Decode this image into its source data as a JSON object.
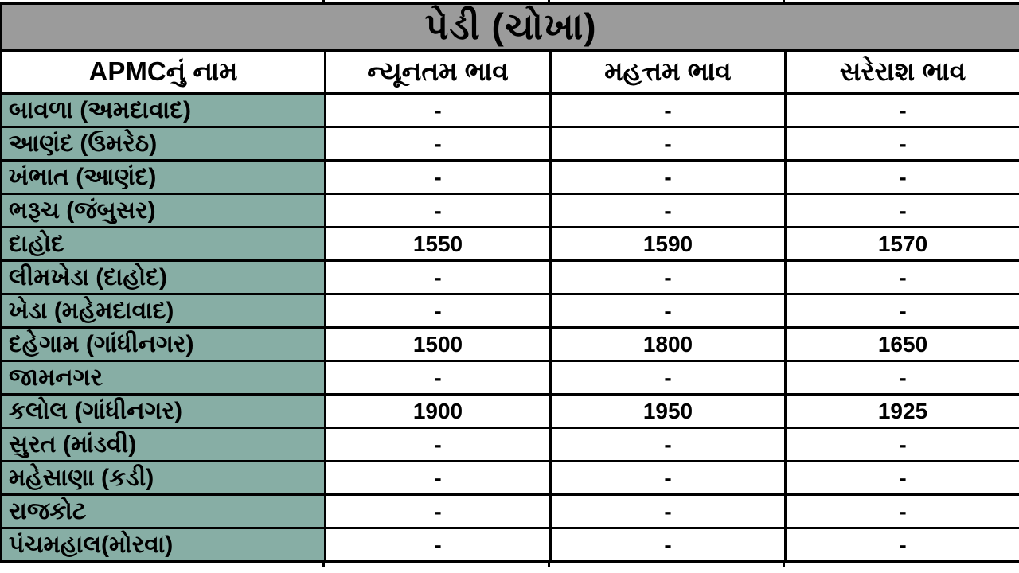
{
  "title": "પેડી (ચોખા)",
  "table": {
    "columns": {
      "name": "APMCનું નામ",
      "min": "ન્યૂનતમ ભાવ",
      "max": "મહત્તમ ભાવ",
      "avg": "સરેરાશ ભાવ"
    },
    "rows": [
      {
        "name": "બાવળા (અમદાવાદ)",
        "min": "-",
        "max": "-",
        "avg": "-"
      },
      {
        "name": "આણંદ (ઉમરેઠ)",
        "min": "-",
        "max": "-",
        "avg": "-"
      },
      {
        "name": "ખંભાત (આણંદ)",
        "min": "-",
        "max": "-",
        "avg": "-"
      },
      {
        "name": "ભરૂચ (જંબુસર)",
        "min": "-",
        "max": "-",
        "avg": "-"
      },
      {
        "name": "દાહોદ",
        "min": "1550",
        "max": "1590",
        "avg": "1570"
      },
      {
        "name": "લીમખેડા (દાહોદ)",
        "min": "-",
        "max": "-",
        "avg": "-"
      },
      {
        "name": "ખેડા (મહેમદાવાદ)",
        "min": "-",
        "max": "-",
        "avg": "-"
      },
      {
        "name": "દહેગામ (ગાંધીનગર)",
        "min": "1500",
        "max": "1800",
        "avg": "1650"
      },
      {
        "name": "જામનગર",
        "min": "-",
        "max": "-",
        "avg": "-"
      },
      {
        "name": "કલોલ (ગાંધીનગર)",
        "min": "1900",
        "max": "1950",
        "avg": "1925"
      },
      {
        "name": "સુરત (માંડવી)",
        "min": "-",
        "max": "-",
        "avg": "-"
      },
      {
        "name": "મહેસાણા (કડી)",
        "min": "-",
        "max": "-",
        "avg": "-"
      },
      {
        "name": "રાજકોટ",
        "min": "-",
        "max": "-",
        "avg": "-"
      },
      {
        "name": "પંચમહાલ(મોરવા)",
        "min": "-",
        "max": "-",
        "avg": "-"
      }
    ]
  },
  "colors": {
    "title_bg": "#9b9b9b",
    "name_cell_bg": "#87aea5",
    "cell_bg": "#ffffff",
    "border": "#000000",
    "text": "#000000"
  },
  "chart_data": {
    "type": "table",
    "title": "પેડી (ચોખા)",
    "columns": [
      "APMCનું નામ",
      "ન્યૂનતમ ભાવ",
      "મહત્તમ ભાવ",
      "સરેરાશ ભાવ"
    ],
    "rows": [
      [
        "બાવળા (અમદાવાદ)",
        "-",
        "-",
        "-"
      ],
      [
        "આણંદ (ઉમરેઠ)",
        "-",
        "-",
        "-"
      ],
      [
        "ખંભાત (આણંદ)",
        "-",
        "-",
        "-"
      ],
      [
        "ભરૂચ (જંબુસર)",
        "-",
        "-",
        "-"
      ],
      [
        "દાહોદ",
        1550,
        1590,
        1570
      ],
      [
        "લીમખેડા (દાહોદ)",
        "-",
        "-",
        "-"
      ],
      [
        "ખેડા (મહેમદાવાદ)",
        "-",
        "-",
        "-"
      ],
      [
        "દહેગામ (ગાંધીનગર)",
        1500,
        1800,
        1650
      ],
      [
        "જામનગર",
        "-",
        "-",
        "-"
      ],
      [
        "કલોલ (ગાંધીનગર)",
        1900,
        1950,
        1925
      ],
      [
        "સુરત (માંડવી)",
        "-",
        "-",
        "-"
      ],
      [
        "મહેસાણા (કડી)",
        "-",
        "-",
        "-"
      ],
      [
        "રાજકોટ",
        "-",
        "-",
        "-"
      ],
      [
        "પંચમહાલ(મોરવા)",
        "-",
        "-",
        "-"
      ]
    ]
  }
}
